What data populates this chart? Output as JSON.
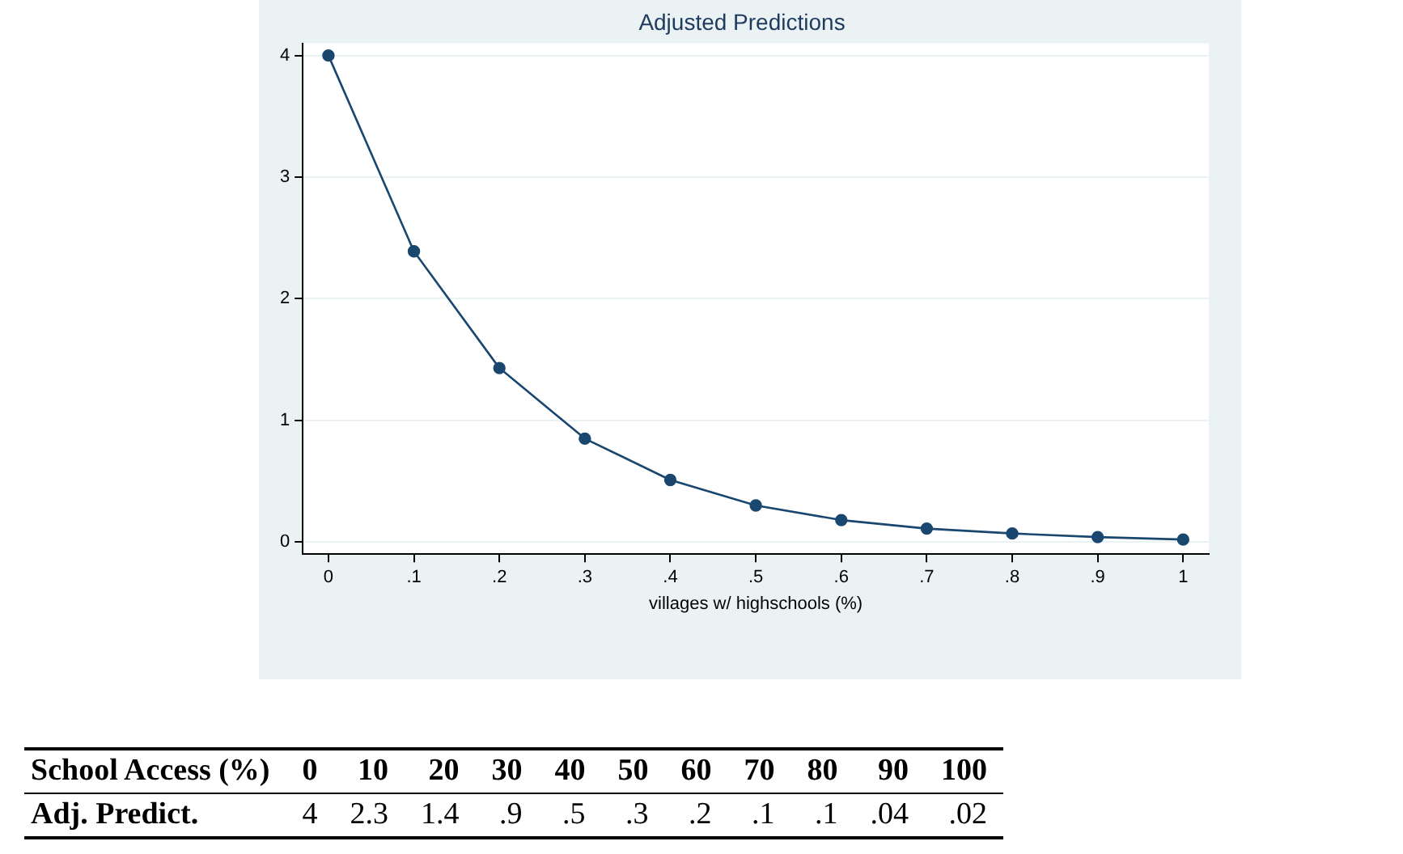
{
  "chart_data": {
    "type": "line",
    "title": "Adjusted Predictions",
    "xlabel": "villages w/ highschools (%)",
    "x": [
      0,
      0.1,
      0.2,
      0.3,
      0.4,
      0.5,
      0.6,
      0.7,
      0.8,
      0.9,
      1
    ],
    "series": [
      {
        "color": "#1a476f",
        "values": [
          4,
          2.39,
          1.43,
          0.85,
          0.51,
          0.3,
          0.18,
          0.11,
          0.07,
          0.04,
          0.02
        ]
      }
    ],
    "annotations": [
      "School Access (%)",
      "0",
      "10",
      "20",
      "30",
      "40",
      "50",
      "60",
      "70",
      "80",
      "90",
      "100",
      "Adj. Predict.",
      "4",
      "2.3",
      "1.4",
      ".9",
      ".5",
      ".3",
      ".2",
      ".1",
      ".1",
      ".04",
      ".02"
    ],
    "xlim": [
      -0.03,
      1.03
    ],
    "xticks": [
      0,
      {
        "value": 0.1,
        "label": ".1"
      },
      {
        "value": 0.2,
        "label": ".2"
      },
      {
        "value": 0.3,
        "label": ".3"
      },
      {
        "value": 0.4,
        "label": ".4"
      },
      {
        "value": 0.5,
        "label": ".5"
      },
      {
        "value": 0.6,
        "label": ".6"
      },
      {
        "value": 0.7,
        "label": ".7"
      },
      {
        "value": 0.8,
        "label": ".8"
      },
      {
        "value": 0.9,
        "label": ".9"
      },
      1
    ],
    "ylim": [
      -0.1,
      4.1
    ],
    "yticks": [
      0,
      1,
      2,
      3,
      4
    ],
    "grid": "y",
    "legend": false,
    "marker": "circle",
    "line_style": "solid"
  }
}
